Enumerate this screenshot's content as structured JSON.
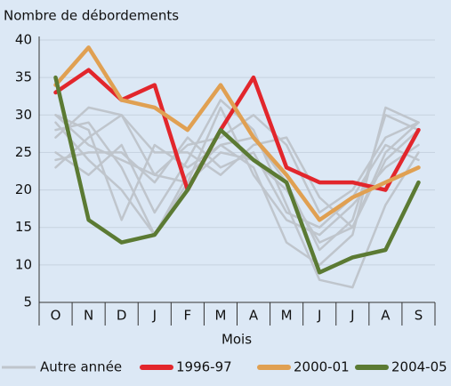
{
  "chart_data": {
    "type": "line",
    "title": "Nombre de débordements",
    "x_label": "Mois",
    "categories": [
      "O",
      "N",
      "D",
      "J",
      "F",
      "M",
      "A",
      "M",
      "J",
      "J",
      "A",
      "S"
    ],
    "ylim": [
      5,
      40
    ],
    "yticks": [
      5,
      10,
      15,
      20,
      25,
      30,
      35,
      40
    ],
    "grid": true,
    "legend": "bottom",
    "other_years": {
      "name": "Autre année",
      "color": "#bfc5cc",
      "values": [
        [
          30,
          26,
          24,
          22,
          26,
          27,
          30,
          26,
          17,
          20,
          27,
          29
        ],
        [
          28,
          29,
          23,
          14,
          22,
          26,
          27,
          21,
          12,
          16,
          30,
          28
        ],
        [
          23,
          27,
          30,
          22,
          21,
          25,
          24,
          20,
          13,
          15,
          25,
          29
        ],
        [
          25,
          22,
          26,
          17,
          24,
          32,
          28,
          18,
          8,
          7,
          18,
          25
        ],
        [
          27,
          31,
          30,
          25,
          25,
          22,
          26,
          27,
          19,
          15,
          24,
          28
        ],
        [
          29,
          24,
          20,
          14,
          21,
          31,
          22,
          16,
          14,
          18,
          23,
          26
        ],
        [
          30,
          28,
          16,
          26,
          23,
          26,
          23,
          13,
          10,
          14,
          31,
          29
        ],
        [
          24,
          25,
          25,
          21,
          27,
          23,
          25,
          17,
          15,
          19,
          26,
          24
        ]
      ]
    },
    "series": [
      {
        "name": "1996-97",
        "color": "#e2262c",
        "values": [
          33,
          36,
          32,
          34,
          20,
          28,
          35,
          23,
          21,
          21,
          20,
          28
        ]
      },
      {
        "name": "2000-01",
        "color": "#e0a052",
        "values": [
          34,
          39,
          32,
          31,
          28,
          34,
          27,
          22,
          16,
          19,
          21,
          23
        ]
      },
      {
        "name": "2004-05",
        "color": "#5b7a33",
        "values": [
          35,
          16,
          13,
          14,
          20,
          28,
          24,
          21,
          9,
          11,
          12,
          21
        ]
      }
    ]
  }
}
